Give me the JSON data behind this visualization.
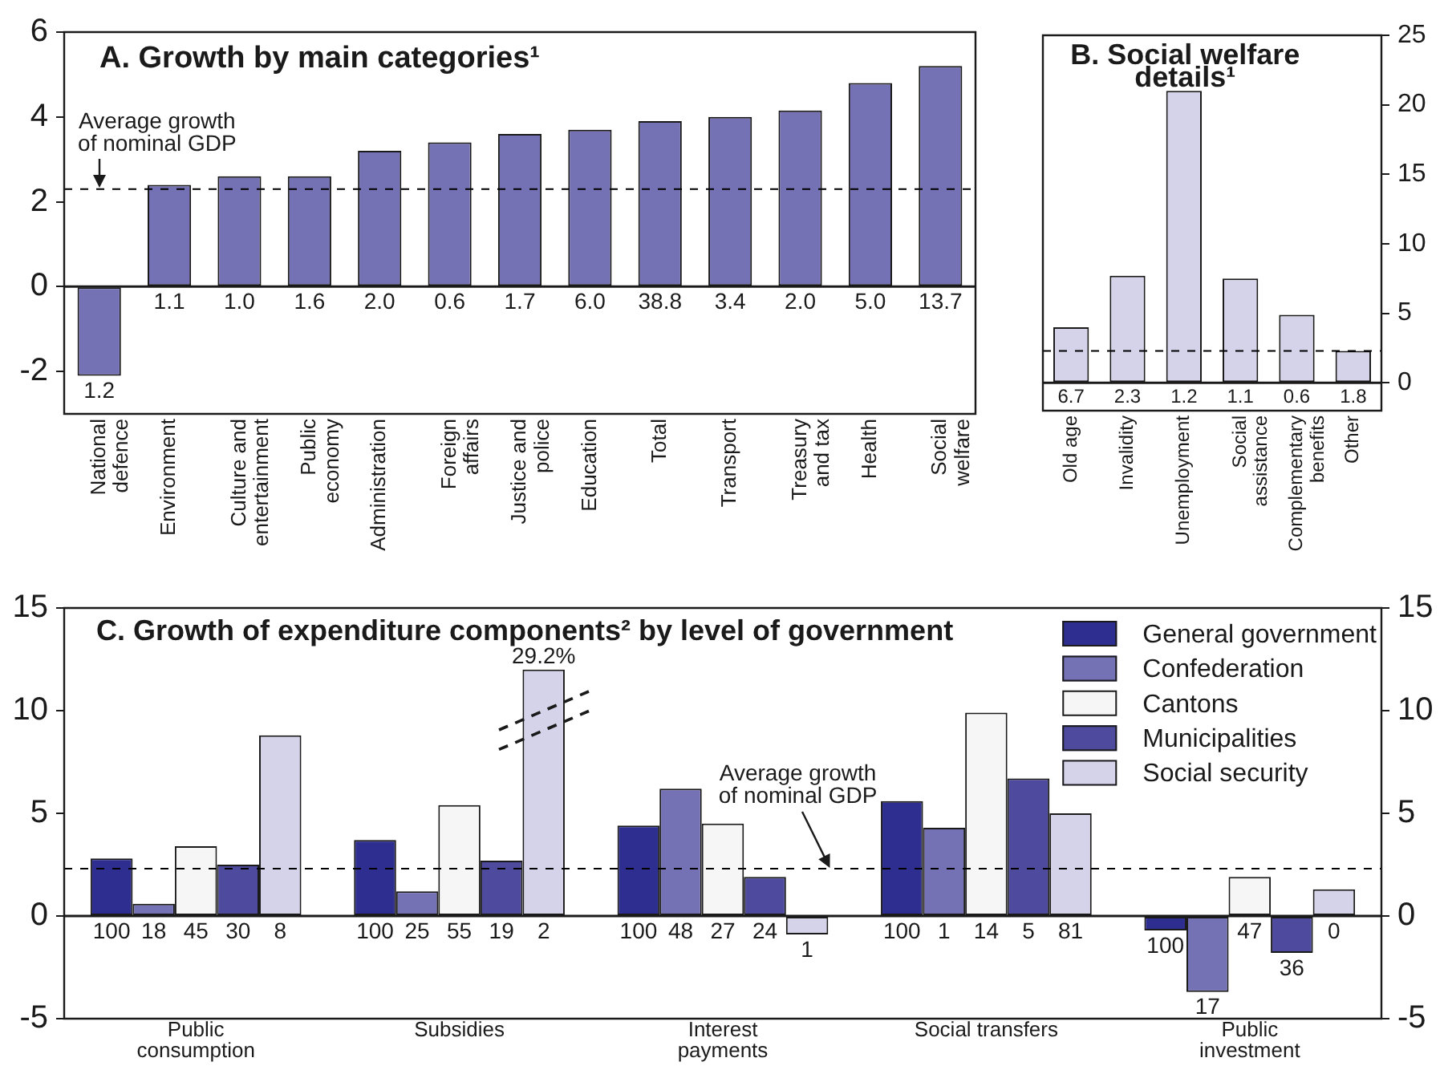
{
  "chart_data": [
    {
      "type": "bar",
      "title": "A. Growth by main categories¹",
      "categories": [
        "National defence",
        "Environment",
        "Culture and entertainment",
        "Public economy",
        "Administration",
        "Foreign affairs",
        "Justice and police",
        "Education",
        "Total",
        "Transport",
        "Treasury and tax",
        "Health",
        "Social welfare"
      ],
      "values": [
        -2.1,
        2.4,
        2.6,
        2.6,
        3.2,
        3.4,
        3.6,
        3.7,
        3.9,
        4.0,
        4.15,
        4.8,
        5.2
      ],
      "color": "#7571b5",
      "ylim": [
        -3,
        6
      ],
      "yticks": [
        -2,
        0,
        2,
        4,
        6
      ],
      "ref_lines": [
        {
          "axis": "y",
          "value": 2.3,
          "label": "Average growth of nominal GDP",
          "line_style": "dashed",
          "color": "#000000"
        }
      ],
      "annotations": [
        {
          "text": "1.2",
          "x": "National defence",
          "y": -2.1
        },
        {
          "text": "1.1",
          "x": "Environment",
          "y": 0
        },
        {
          "text": "1.0",
          "x": "Culture and entertainment",
          "y": 0
        },
        {
          "text": "1.6",
          "x": "Public economy",
          "y": 0
        },
        {
          "text": "2.0",
          "x": "Administration",
          "y": 0
        },
        {
          "text": "0.6",
          "x": "Foreign affairs",
          "y": 0
        },
        {
          "text": "1.7",
          "x": "Justice and police",
          "y": 0
        },
        {
          "text": "6.0",
          "x": "Education",
          "y": 0
        },
        {
          "text": "38.8",
          "x": "Total",
          "y": 0
        },
        {
          "text": "3.4",
          "x": "Transport",
          "y": 0
        },
        {
          "text": "2.0",
          "x": "Treasury and tax",
          "y": 0
        },
        {
          "text": "5.0",
          "x": "Health",
          "y": 0
        },
        {
          "text": "13.7",
          "x": "Social welfare",
          "y": 0
        }
      ]
    },
    {
      "type": "bar",
      "title": "B. Social welfare details¹",
      "categories": [
        "Old age",
        "Invalidity",
        "Unemployment",
        "Social assistance",
        "Complementary benefits",
        "Other"
      ],
      "values": [
        4.0,
        7.7,
        21.0,
        7.5,
        4.9,
        2.3
      ],
      "color": "#d5d3ea",
      "ylim": [
        -2,
        25
      ],
      "yticks": [
        0,
        5,
        10,
        15,
        20,
        25
      ],
      "ref_lines": [
        {
          "axis": "y",
          "value": 2.3,
          "line_style": "dashed",
          "color": "#000000"
        }
      ],
      "annotations": [
        {
          "text": "6.7",
          "x": "Old age",
          "y": 0
        },
        {
          "text": "2.3",
          "x": "Invalidity",
          "y": 0
        },
        {
          "text": "1.2",
          "x": "Unemployment",
          "y": 0
        },
        {
          "text": "1.1",
          "x": "Social assistance",
          "y": 0
        },
        {
          "text": "0.6",
          "x": "Complementary benefits",
          "y": 0
        },
        {
          "text": "1.8",
          "x": "Other",
          "y": 0
        }
      ]
    },
    {
      "type": "bar",
      "title": "C. Growth of expenditure components² by level of government",
      "categories": [
        "Public consumption",
        "Subsidies",
        "Interest payments",
        "Social transfers",
        "Public investment"
      ],
      "series": [
        {
          "name": "General government",
          "color": "#2d2e8f",
          "values": [
            2.8,
            3.7,
            4.4,
            5.6,
            -0.7
          ]
        },
        {
          "name": "Confederation",
          "color": "#7571b5",
          "values": [
            0.6,
            1.2,
            6.2,
            4.3,
            -3.7
          ]
        },
        {
          "name": "Cantons",
          "color": "#f6f6f6",
          "values": [
            3.4,
            5.4,
            4.5,
            9.9,
            1.9
          ]
        },
        {
          "name": "Municipalities",
          "color": "#4e4b9e",
          "values": [
            2.5,
            2.7,
            1.9,
            6.7,
            -1.8
          ]
        },
        {
          "name": "Social security",
          "color": "#d5d3ea",
          "values": [
            8.8,
            12.0,
            -0.9,
            5.0,
            1.3
          ]
        }
      ],
      "ylim": [
        -5,
        15
      ],
      "yticks": [
        -5,
        0,
        5,
        10,
        15
      ],
      "y2lim": [
        -5,
        15
      ],
      "y2ticks": [
        -5,
        0,
        5,
        10,
        15
      ],
      "legend": "top right",
      "ref_lines": [
        {
          "axis": "y",
          "value": 2.3,
          "label": "Average growth of nominal GDP",
          "line_style": "dashed",
          "color": "#000000"
        }
      ],
      "annotations": [
        "100",
        "18",
        "45",
        "30",
        "8",
        "100",
        "25",
        "55",
        "19",
        "2",
        "100",
        "48",
        "27",
        "24",
        "1",
        "100",
        "1",
        "14",
        "5",
        "81",
        "100",
        "17",
        "47",
        "36",
        "0",
        "29.2%"
      ]
    }
  ]
}
